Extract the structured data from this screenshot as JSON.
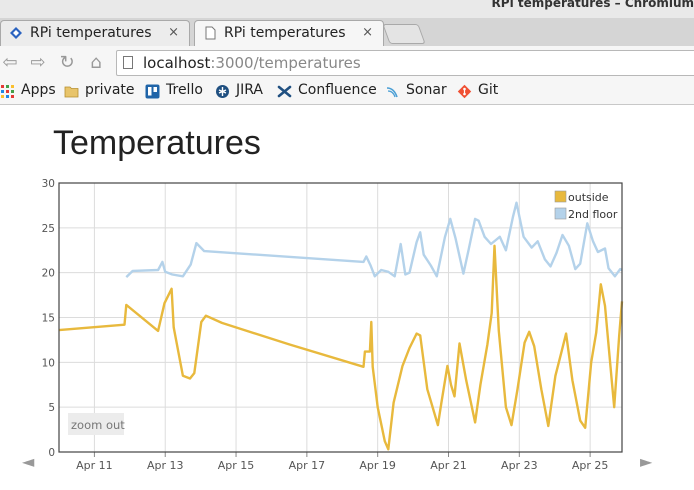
{
  "window": {
    "title": "RPi temperatures – Chromium"
  },
  "tabs": [
    {
      "label": "RPi temperatures",
      "close": "×"
    },
    {
      "label": "RPi temperatures",
      "close": "×"
    }
  ],
  "toolbar": {
    "back": "⇦",
    "forward": "⇨",
    "reload": "↻",
    "home": "⌂",
    "url_host": "localhost",
    "url_rest": ":3000/temperatures"
  },
  "bookmarks": [
    {
      "label": "Apps",
      "icon": "apps-grid-icon"
    },
    {
      "label": "private",
      "icon": "folder-icon"
    },
    {
      "label": "Trello",
      "icon": "trello-icon"
    },
    {
      "label": "JIRA",
      "icon": "jira-icon"
    },
    {
      "label": "Confluence",
      "icon": "confluence-icon"
    },
    {
      "label": "Sonar",
      "icon": "sonar-icon"
    },
    {
      "label": "Git",
      "icon": "git-icon"
    }
  ],
  "page": {
    "heading": "Temperatures",
    "zoom_out": "zoom out",
    "nav_left": "◄",
    "nav_right": "►"
  },
  "chart_data": {
    "type": "line",
    "x_unit": "days (April)",
    "xlim": [
      10.0,
      25.9
    ],
    "ylim": [
      0,
      30
    ],
    "y_ticks": [
      0,
      5,
      10,
      15,
      20,
      25,
      30
    ],
    "x_tick_values": [
      11,
      13,
      15,
      17,
      19,
      21,
      23,
      25
    ],
    "x_tick_labels": [
      "Apr 11",
      "Apr 13",
      "Apr 15",
      "Apr 17",
      "Apr 19",
      "Apr 21",
      "Apr 23",
      "Apr 25"
    ],
    "grid": true,
    "legend_position": "top-right",
    "colors": {
      "outside": "#e8b93d",
      "2nd floor": "#b4d2ea"
    },
    "series": [
      {
        "name": "outside",
        "points": [
          [
            10.0,
            13.6
          ],
          [
            11.85,
            14.2
          ],
          [
            11.9,
            16.4
          ],
          [
            12.8,
            13.5
          ],
          [
            12.98,
            16.6
          ],
          [
            13.18,
            18.2
          ],
          [
            13.24,
            13.9
          ],
          [
            13.5,
            8.5
          ],
          [
            13.7,
            8.2
          ],
          [
            13.82,
            8.8
          ],
          [
            14.02,
            14.5
          ],
          [
            14.15,
            15.2
          ],
          [
            14.6,
            14.4
          ],
          [
            16.5,
            12.0
          ],
          [
            18.6,
            9.5
          ],
          [
            18.64,
            11.2
          ],
          [
            18.78,
            11.2
          ],
          [
            18.82,
            14.5
          ],
          [
            18.86,
            9.5
          ],
          [
            19.0,
            5.0
          ],
          [
            19.2,
            1.2
          ],
          [
            19.3,
            0.3
          ],
          [
            19.45,
            5.5
          ],
          [
            19.7,
            9.6
          ],
          [
            19.9,
            11.6
          ],
          [
            20.1,
            13.2
          ],
          [
            20.2,
            13.0
          ],
          [
            20.4,
            7.0
          ],
          [
            20.7,
            3.0
          ],
          [
            20.8,
            5.5
          ],
          [
            20.97,
            9.6
          ],
          [
            21.07,
            7.5
          ],
          [
            21.17,
            6.2
          ],
          [
            21.31,
            12.1
          ],
          [
            21.5,
            8.0
          ],
          [
            21.75,
            3.3
          ],
          [
            21.9,
            7.5
          ],
          [
            22.1,
            12.0
          ],
          [
            22.22,
            15.5
          ],
          [
            22.3,
            23.0
          ],
          [
            22.42,
            13.5
          ],
          [
            22.62,
            5.0
          ],
          [
            22.78,
            3.0
          ],
          [
            22.95,
            7.0
          ],
          [
            23.15,
            12.2
          ],
          [
            23.28,
            13.4
          ],
          [
            23.42,
            11.8
          ],
          [
            23.62,
            7.0
          ],
          [
            23.82,
            2.9
          ],
          [
            24.02,
            8.5
          ],
          [
            24.2,
            11.3
          ],
          [
            24.32,
            13.2
          ],
          [
            24.5,
            8.0
          ],
          [
            24.72,
            3.5
          ],
          [
            24.86,
            2.7
          ],
          [
            25.03,
            10.0
          ],
          [
            25.17,
            13.3
          ],
          [
            25.3,
            18.7
          ],
          [
            25.42,
            16.3
          ],
          [
            25.6,
            8.4
          ],
          [
            25.68,
            5.0
          ],
          [
            25.82,
            13.0
          ],
          [
            25.9,
            16.8
          ]
        ]
      },
      {
        "name": "2nd floor",
        "points": [
          [
            11.9,
            19.5
          ],
          [
            12.08,
            20.2
          ],
          [
            12.8,
            20.3
          ],
          [
            12.92,
            21.2
          ],
          [
            13.0,
            20.1
          ],
          [
            13.2,
            19.8
          ],
          [
            13.5,
            19.6
          ],
          [
            13.72,
            20.9
          ],
          [
            13.88,
            23.3
          ],
          [
            14.1,
            22.4
          ],
          [
            18.6,
            21.2
          ],
          [
            18.68,
            21.8
          ],
          [
            18.8,
            20.8
          ],
          [
            18.92,
            19.6
          ],
          [
            19.1,
            20.3
          ],
          [
            19.3,
            20.1
          ],
          [
            19.48,
            19.6
          ],
          [
            19.65,
            23.2
          ],
          [
            19.78,
            19.8
          ],
          [
            19.9,
            20.0
          ],
          [
            20.1,
            23.4
          ],
          [
            20.2,
            24.5
          ],
          [
            20.3,
            22.0
          ],
          [
            20.5,
            20.8
          ],
          [
            20.67,
            19.6
          ],
          [
            20.9,
            24.0
          ],
          [
            21.05,
            26.0
          ],
          [
            21.2,
            23.8
          ],
          [
            21.42,
            19.9
          ],
          [
            21.57,
            22.6
          ],
          [
            21.75,
            26.0
          ],
          [
            21.85,
            25.8
          ],
          [
            22.02,
            24.0
          ],
          [
            22.2,
            23.2
          ],
          [
            22.45,
            24.0
          ],
          [
            22.62,
            22.5
          ],
          [
            22.82,
            26.2
          ],
          [
            22.92,
            27.8
          ],
          [
            23.12,
            24.0
          ],
          [
            23.35,
            22.8
          ],
          [
            23.52,
            23.5
          ],
          [
            23.72,
            21.5
          ],
          [
            23.88,
            20.7
          ],
          [
            24.05,
            22.2
          ],
          [
            24.22,
            24.2
          ],
          [
            24.4,
            23.0
          ],
          [
            24.58,
            20.4
          ],
          [
            24.72,
            21.0
          ],
          [
            24.92,
            25.5
          ],
          [
            25.08,
            23.5
          ],
          [
            25.22,
            22.3
          ],
          [
            25.42,
            22.7
          ],
          [
            25.52,
            20.5
          ],
          [
            25.7,
            19.6
          ],
          [
            25.85,
            20.4
          ],
          [
            25.9,
            20.3
          ]
        ]
      }
    ]
  }
}
